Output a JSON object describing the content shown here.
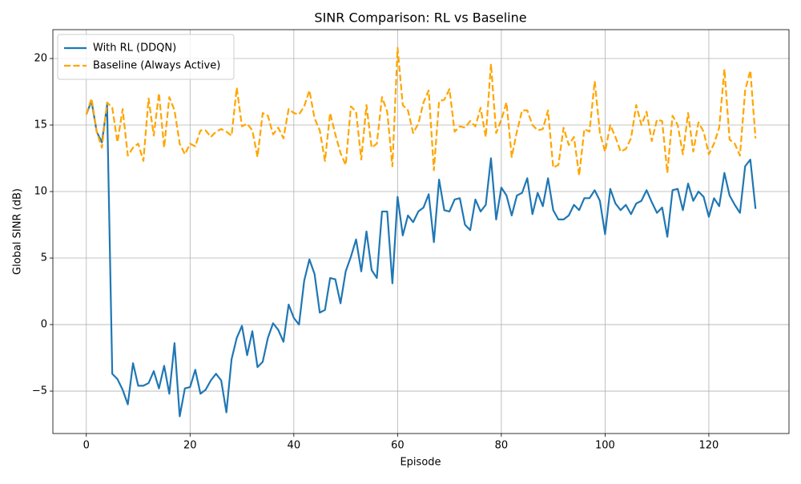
{
  "chart_data": {
    "type": "line",
    "title": "SINR Comparison: RL vs Baseline",
    "xlabel": "Episode",
    "ylabel": "Global SINR (dB)",
    "x": [
      0,
      1,
      2,
      3,
      4,
      5,
      6,
      7,
      8,
      9,
      10,
      11,
      12,
      13,
      14,
      15,
      16,
      17,
      18,
      19,
      20,
      21,
      22,
      23,
      24,
      25,
      26,
      27,
      28,
      29,
      30,
      31,
      32,
      33,
      34,
      35,
      36,
      37,
      38,
      39,
      40,
      41,
      42,
      43,
      44,
      45,
      46,
      47,
      48,
      49,
      50,
      51,
      52,
      53,
      54,
      55,
      56,
      57,
      58,
      59,
      60,
      61,
      62,
      63,
      64,
      65,
      66,
      67,
      68,
      69,
      70,
      71,
      72,
      73,
      74,
      75,
      76,
      77,
      78,
      79,
      80,
      81,
      82,
      83,
      84,
      85,
      86,
      87,
      88,
      89,
      90,
      91,
      92,
      93,
      94,
      95,
      96,
      97,
      98,
      99,
      100,
      101,
      102,
      103,
      104,
      105,
      106,
      107,
      108,
      109,
      110,
      111,
      112,
      113,
      114,
      115,
      116,
      117,
      118,
      119,
      120,
      121,
      122,
      123,
      124,
      125,
      126,
      127,
      128,
      129
    ],
    "series": [
      {
        "name": "With RL (DDQN)",
        "color": "#1f77b4",
        "linestyle": "solid",
        "values": [
          15.8,
          16.8,
          14.5,
          13.7,
          16.5,
          -3.7,
          -4.1,
          -4.9,
          -6.0,
          -2.9,
          -4.6,
          -4.6,
          -4.4,
          -3.5,
          -4.8,
          -3.1,
          -5.2,
          -1.4,
          -6.9,
          -4.8,
          -4.7,
          -3.4,
          -5.2,
          -4.9,
          -4.2,
          -3.7,
          -4.2,
          -6.6,
          -2.6,
          -1.0,
          -0.1,
          -2.3,
          -0.5,
          -3.2,
          -2.8,
          -1.0,
          0.1,
          -0.4,
          -1.3,
          1.5,
          0.5,
          0.0,
          3.3,
          4.9,
          3.8,
          0.9,
          1.1,
          3.5,
          3.4,
          1.6,
          4.0,
          5.1,
          6.4,
          4.0,
          7.0,
          4.1,
          3.5,
          8.5,
          8.5,
          3.1,
          9.6,
          6.7,
          8.2,
          7.7,
          8.5,
          8.8,
          9.8,
          6.2,
          10.9,
          8.6,
          8.5,
          9.4,
          9.5,
          7.5,
          7.1,
          9.4,
          8.5,
          9.0,
          12.5,
          7.9,
          10.3,
          9.7,
          8.2,
          9.7,
          9.9,
          11.0,
          8.3,
          9.9,
          8.9,
          11.0,
          8.6,
          7.9,
          7.9,
          8.2,
          9.0,
          8.6,
          9.5,
          9.5,
          10.1,
          9.3,
          6.8,
          10.2,
          9.1,
          8.6,
          9.0,
          8.3,
          9.1,
          9.3,
          10.1,
          9.2,
          8.4,
          8.8,
          6.6,
          10.1,
          10.2,
          8.6,
          10.6,
          9.3,
          10.0,
          9.6,
          8.1,
          9.5,
          8.9,
          11.4,
          9.7,
          9.0,
          8.4,
          11.9,
          12.4,
          8.7
        ]
      },
      {
        "name": "Baseline (Always Active)",
        "color": "#ffa500",
        "linestyle": "dashed",
        "values": [
          15.8,
          17.0,
          14.5,
          13.3,
          16.7,
          16.3,
          13.7,
          16.2,
          12.7,
          13.3,
          13.6,
          12.3,
          17.0,
          14.2,
          17.4,
          13.3,
          17.1,
          16.1,
          13.6,
          12.8,
          13.6,
          13.4,
          14.6,
          14.6,
          14.1,
          14.5,
          14.7,
          14.5,
          14.2,
          17.8,
          14.9,
          15.1,
          14.6,
          12.6,
          15.9,
          15.7,
          14.3,
          14.8,
          14.0,
          16.2,
          15.9,
          15.8,
          16.4,
          17.6,
          15.5,
          14.6,
          12.3,
          15.9,
          14.3,
          12.9,
          12.0,
          16.4,
          16.0,
          12.4,
          16.5,
          13.3,
          13.6,
          17.1,
          16.0,
          11.9,
          20.8,
          16.5,
          16.1,
          14.4,
          15.1,
          16.7,
          17.6,
          11.6,
          16.8,
          16.9,
          17.7,
          14.5,
          14.9,
          14.8,
          15.3,
          14.9,
          16.3,
          14.1,
          19.6,
          14.4,
          15.4,
          16.7,
          12.6,
          14.5,
          16.1,
          16.1,
          15.0,
          14.6,
          14.7,
          16.1,
          11.8,
          12.0,
          14.8,
          13.5,
          14.1,
          11.2,
          14.7,
          14.5,
          18.3,
          14.4,
          13.0,
          15.0,
          14.1,
          13.0,
          13.2,
          14.0,
          16.5,
          15.0,
          16.0,
          13.8,
          15.4,
          15.3,
          11.4,
          15.7,
          15.0,
          12.8,
          15.9,
          13.0,
          15.2,
          14.5,
          12.8,
          13.6,
          14.8,
          19.2,
          13.9,
          13.6,
          12.7,
          17.6,
          19.1,
          14.0
        ]
      }
    ],
    "xlim": [
      -6.45,
      135.45
    ],
    "ylim": [
      -8.19,
      22.17
    ],
    "xticks": [
      0,
      20,
      40,
      60,
      80,
      100,
      120
    ],
    "yticks": [
      {
        "value": -5,
        "label": "−5"
      },
      0,
      5,
      10,
      15,
      20
    ],
    "grid": true,
    "legend": "upper left"
  }
}
